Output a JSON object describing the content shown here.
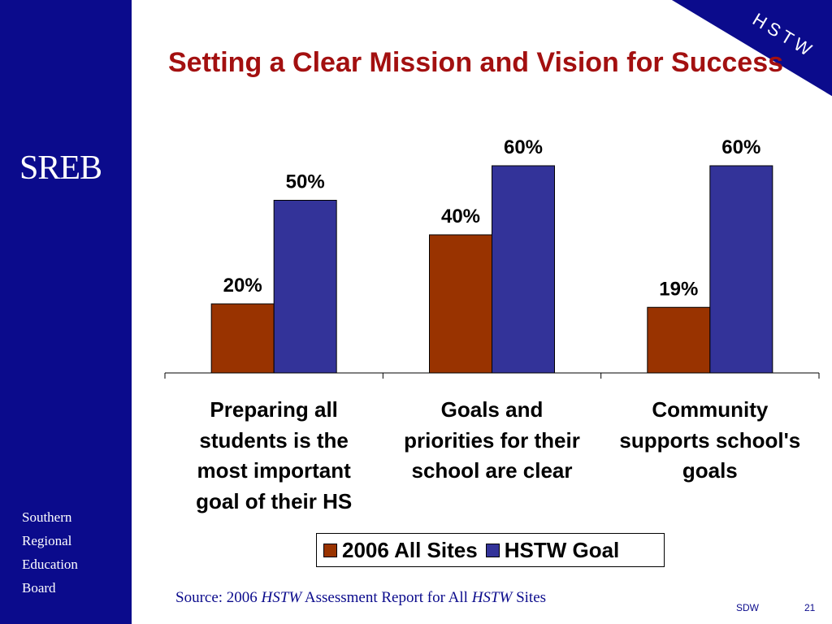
{
  "slide": {
    "title": "Setting a Clear Mission and Vision for Success",
    "logo_text": "SREB",
    "corner_badge": "HSTW",
    "org_lines": [
      "Southern",
      "Regional",
      "Education",
      "Board"
    ],
    "source": {
      "part1": "Source: 2006 ",
      "italic1": "HSTW",
      "part2": " Assessment Report for All ",
      "italic2": "HSTW",
      "part3": " Sites"
    },
    "footer_left": "SDW",
    "footer_right": "21"
  },
  "colors": {
    "sidebar": "#0b0b8c",
    "title": "#a31010",
    "series_2006": "#993300",
    "series_goal": "#333399"
  },
  "chart_data": {
    "type": "bar",
    "categories": [
      "Preparing all students is the most important goal of their HS",
      "Goals and priorities for their school are clear",
      "Community supports school's goals"
    ],
    "category_lines": [
      [
        "Preparing all",
        "students is the",
        "most important",
        "goal of their HS"
      ],
      [
        "Goals and",
        "priorities for their",
        "school are clear"
      ],
      [
        "Community",
        "supports school's",
        "goals"
      ]
    ],
    "series": [
      {
        "name": "2006 All Sites",
        "values": [
          20,
          40,
          19
        ],
        "labels": [
          "20%",
          "40%",
          "19%"
        ],
        "color": "#993300"
      },
      {
        "name": "HSTW Goal",
        "values": [
          50,
          60,
          60
        ],
        "labels": [
          "50%",
          "60%",
          "60%"
        ],
        "color": "#333399"
      }
    ],
    "ylim": [
      0,
      60
    ],
    "grid": false,
    "legend": "bottom"
  }
}
